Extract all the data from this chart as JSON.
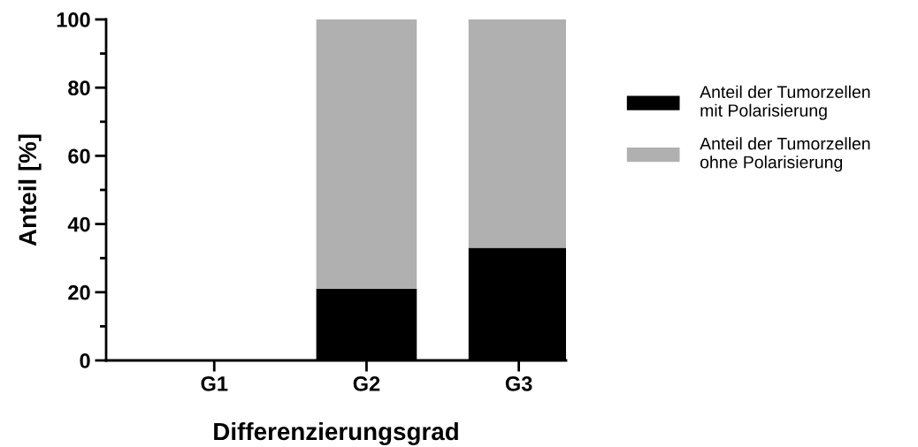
{
  "chart_data": {
    "type": "bar",
    "stacked": true,
    "xlabel": "Differenzierungsgrad",
    "ylabel": "Anteil [%]",
    "categories": [
      "G1",
      "G2",
      "G3"
    ],
    "series": [
      {
        "name": "Anteil der Tumorzellen\nmit Polarisierung",
        "color": "#000000",
        "values": [
          0,
          21,
          33
        ]
      },
      {
        "name": "Anteil der Tumorzellen\nohne Polarisierung",
        "color": "#b0b0b0",
        "values": [
          0,
          79,
          67
        ]
      }
    ],
    "ylim": [
      0,
      100
    ],
    "yticks": [
      0,
      20,
      40,
      60,
      80,
      100
    ],
    "grid": false,
    "legend": "right"
  }
}
